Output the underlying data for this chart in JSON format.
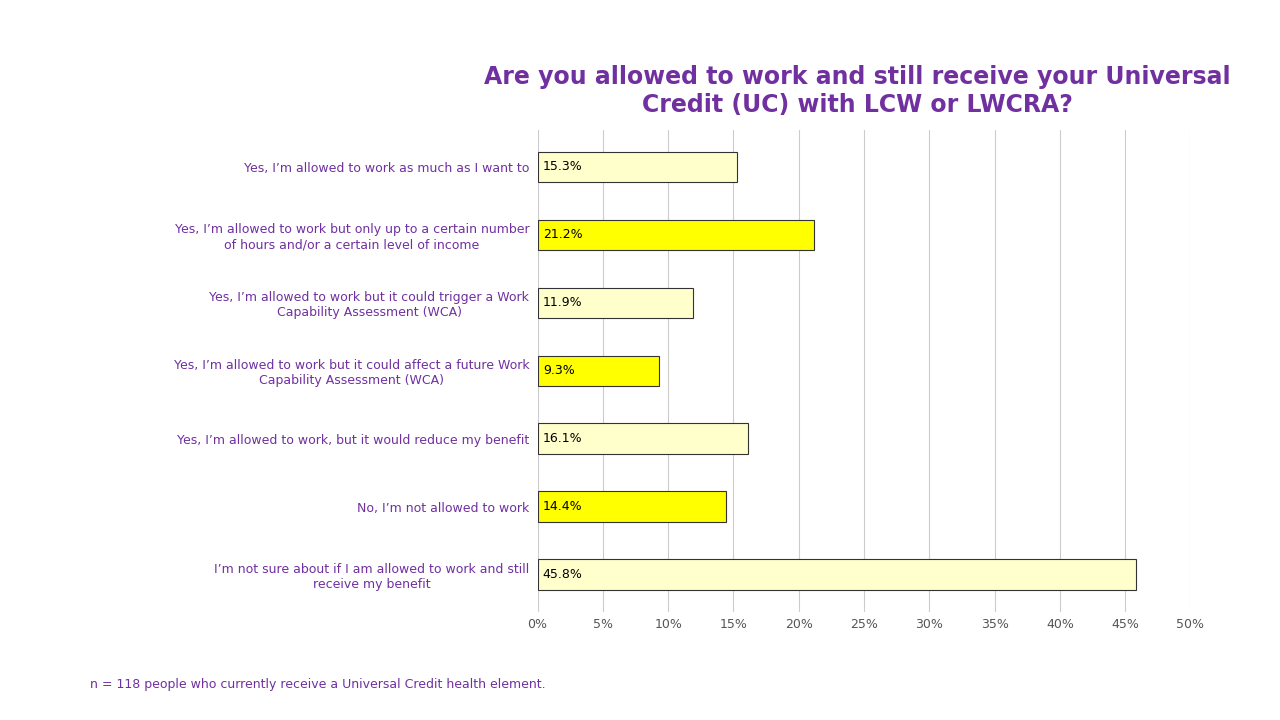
{
  "title": "Are you allowed to work and still receive your Universal\nCredit (UC) with LCW or LWCRA?",
  "title_color": "#7030A0",
  "title_fontsize": 17,
  "categories": [
    "Yes, I’m allowed to work as much as I want to",
    "Yes, I’m allowed to work but only up to a certain number\nof hours and/or a certain level of income",
    "Yes, I’m allowed to work but it could trigger a Work\nCapability Assessment (WCA)",
    "Yes, I’m allowed to work but it could affect a future Work\nCapability Assessment (WCA)",
    "Yes, I’m allowed to work, but it would reduce my benefit",
    "No, I’m not allowed to work",
    "I’m not sure about if I am allowed to work and still\nreceive my benefit"
  ],
  "values": [
    15.3,
    21.2,
    11.9,
    9.3,
    16.1,
    14.4,
    45.8
  ],
  "bar_colors": [
    "#FFFFCC",
    "#FFFF00",
    "#FFFFCC",
    "#FFFF00",
    "#FFFFCC",
    "#FFFF00",
    "#FFFFCC"
  ],
  "bar_edge_color": "#333333",
  "label_color": "#000000",
  "category_color": "#7030A0",
  "xlim": [
    0,
    50
  ],
  "xticks": [
    0,
    5,
    10,
    15,
    20,
    25,
    30,
    35,
    40,
    45,
    50
  ],
  "xtick_labels": [
    "0%",
    "5%",
    "10%",
    "15%",
    "20%",
    "25%",
    "30%",
    "35%",
    "40%",
    "45%",
    "50%"
  ],
  "footnote": "n = 118 people who currently receive a Universal Credit health element.",
  "footnote_color": "#7030A0",
  "background_color": "#FFFFFF",
  "grid_color": "#CCCCCC",
  "bar_height": 0.45,
  "value_fontsize": 9,
  "category_fontsize": 9
}
